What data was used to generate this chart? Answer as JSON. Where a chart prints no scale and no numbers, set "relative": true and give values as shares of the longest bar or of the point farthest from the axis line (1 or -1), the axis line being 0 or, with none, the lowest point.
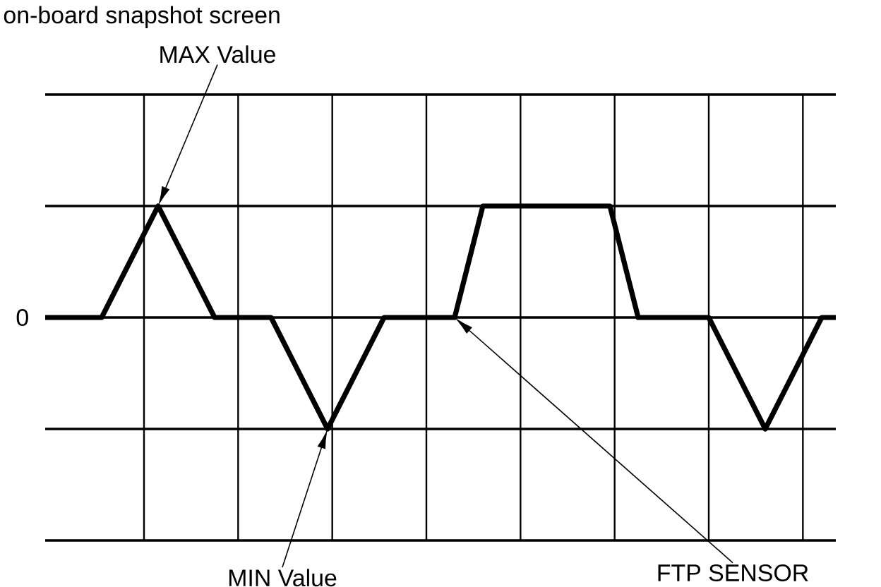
{
  "chart_data": {
    "type": "line",
    "title": "on-board snapshot screen",
    "relative": true,
    "categories": [
      null,
      null,
      null,
      null,
      null,
      null,
      null,
      null,
      null,
      null,
      null,
      null,
      null,
      null,
      null,
      null,
      null,
      null,
      null,
      null,
      null,
      null,
      null,
      null,
      null,
      null,
      null,
      null,
      null,
      null,
      null,
      null,
      null,
      null,
      null,
      null,
      null,
      null,
      null,
      null,
      null,
      null,
      null,
      null,
      null,
      null,
      null,
      null,
      null,
      null,
      null,
      null,
      null,
      null,
      null,
      null,
      null
    ],
    "values": [
      0,
      0,
      0,
      0,
      0,
      0.25,
      0.5,
      0.75,
      1,
      0.75,
      0.5,
      0.25,
      0,
      0,
      0,
      0,
      0,
      -0.25,
      -0.5,
      -0.75,
      -1,
      -0.75,
      -0.5,
      -0.25,
      0,
      0,
      0,
      0,
      0,
      0,
      0.5,
      1,
      1,
      1,
      1,
      1,
      1,
      1,
      1,
      1,
      1,
      0.5,
      0,
      0,
      0,
      0,
      0,
      0,
      -0.25,
      -0.5,
      -0.75,
      -1,
      -0.75,
      -0.5,
      -0.25,
      0,
      0
    ],
    "color": "#000000",
    "grid": true,
    "marker": "none",
    "line_style": "solid",
    "annotations": [
      "0",
      "MAX Value",
      "MIN Value",
      "FTP SENSOR"
    ]
  }
}
